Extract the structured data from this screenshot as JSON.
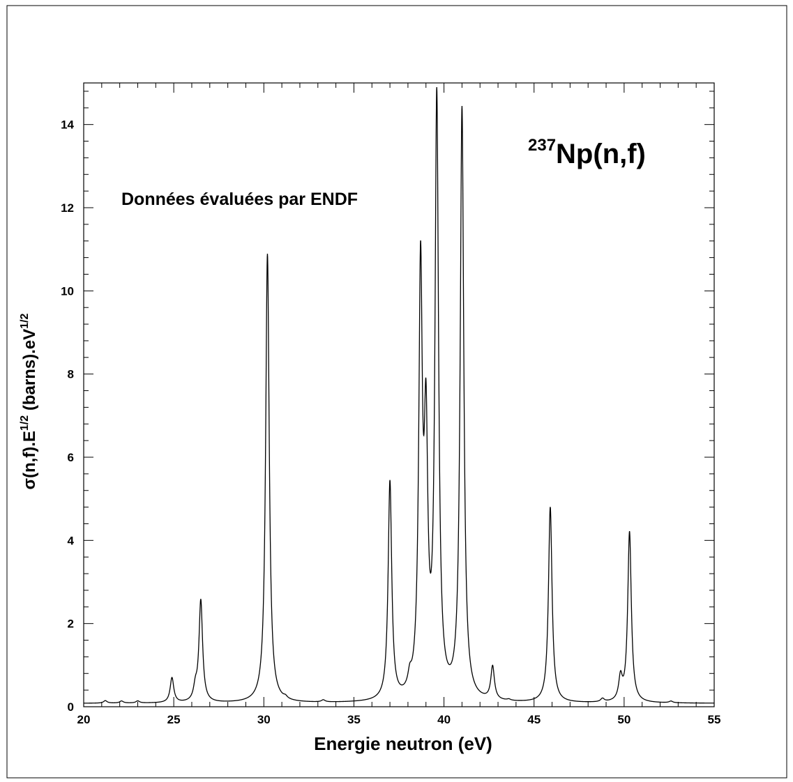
{
  "chart_data": {
    "type": "line",
    "title": "",
    "xlabel": "Energie neutron (eV)",
    "ylabel": {
      "prefix": "σ(n,f).E",
      "exp1": "1/2",
      "middle": " (barns).eV",
      "exp2": "1/2"
    },
    "annotations": {
      "reaction_mass": "237",
      "reaction": "Np(n,f)",
      "source": "Données évaluées par ENDF"
    },
    "xlim": [
      20,
      55
    ],
    "ylim": [
      0,
      15
    ],
    "grid": false,
    "legend": "none",
    "line_color": "#000000",
    "x_ticks": [
      20,
      25,
      30,
      35,
      40,
      45,
      50,
      55
    ],
    "x_tick_labels": [
      "20",
      "25",
      "30",
      "35",
      "40",
      "45",
      "50",
      "55"
    ],
    "y_ticks": [
      0,
      2,
      4,
      6,
      8,
      10,
      12,
      14
    ],
    "y_tick_labels": [
      "0",
      "2",
      "4",
      "6",
      "8",
      "10",
      "12",
      "14"
    ],
    "baseline": 0.08,
    "peaks": [
      {
        "x": 21.2,
        "y": 0.06
      },
      {
        "x": 22.1,
        "y": 0.05
      },
      {
        "x": 23.0,
        "y": 0.05
      },
      {
        "x": 24.9,
        "y": 0.6
      },
      {
        "x": 26.2,
        "y": 0.3
      },
      {
        "x": 26.5,
        "y": 2.45
      },
      {
        "x": 30.2,
        "y": 10.8
      },
      {
        "x": 31.2,
        "y": 0.05
      },
      {
        "x": 33.3,
        "y": 0.05
      },
      {
        "x": 37.0,
        "y": 5.25
      },
      {
        "x": 38.1,
        "y": 0.3
      },
      {
        "x": 38.7,
        "y": 10.0
      },
      {
        "x": 39.0,
        "y": 5.8
      },
      {
        "x": 39.6,
        "y": 14.3
      },
      {
        "x": 41.0,
        "y": 14.2
      },
      {
        "x": 42.7,
        "y": 0.8
      },
      {
        "x": 43.6,
        "y": 0.03
      },
      {
        "x": 45.9,
        "y": 4.7
      },
      {
        "x": 48.8,
        "y": 0.08
      },
      {
        "x": 49.8,
        "y": 0.55
      },
      {
        "x": 50.3,
        "y": 4.1
      },
      {
        "x": 52.6,
        "y": 0.04
      }
    ]
  }
}
